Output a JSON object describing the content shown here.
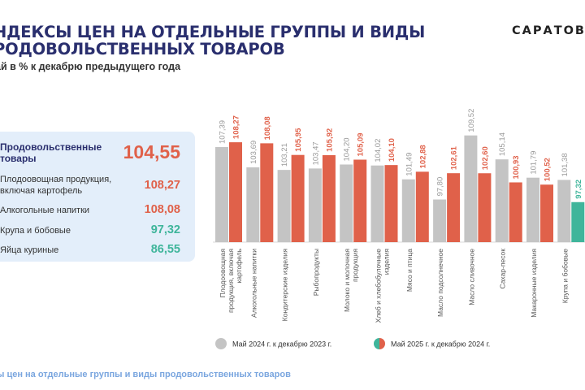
{
  "header": {
    "title_line1": "НДЕКСЫ ЦЕН НА ОТДЕЛЬНЫЕ ГРУППЫ И ВИДЫ",
    "title_line2": "РОДОВОЛЬСТВЕННЫХ ТОВАРОВ",
    "subtitle": "ай в % к декабрю предыдущего года",
    "brand": "САРАТОВС"
  },
  "panel": {
    "rows": [
      {
        "label": "Продовольственные\nтовары",
        "value": "104,55",
        "color": "#e0614a"
      },
      {
        "label": "Плодоовощная продукция,\nвключая картофель",
        "value": "108,27",
        "color": "#e0614a"
      },
      {
        "label": "Алкогольные напитки",
        "value": "108,08",
        "color": "#e0614a"
      },
      {
        "label": "Крупа и бобовые",
        "value": "97,32",
        "color": "#3fb59b"
      },
      {
        "label": "Яйца куриные",
        "value": "86,55",
        "color": "#3fb59b"
      }
    ]
  },
  "footer": {
    "text": "ы цен на отдельные группы и виды продовольственных товаров"
  },
  "chart_data": {
    "type": "bar",
    "categories": [
      "Плодоовощная продукция, включая картофель",
      "Алкогольные напитки",
      "Кондитерские изделия",
      "Рыбопродукты",
      "Молоко и молочная продукция",
      "Хлеб и хлебобулочные изделия",
      "Мясо и птица",
      "Масло подсолнечное",
      "Масло сливочное",
      "Сахар-песок",
      "Макаронные изделия",
      "Крупа и бобовые"
    ],
    "series": [
      {
        "name": "Май 2024 г. к декабрю  2023 г.",
        "color": "#c4c4c4",
        "values": [
          107.39,
          103.69,
          103.21,
          103.47,
          104.2,
          104.02,
          101.49,
          97.8,
          109.52,
          105.14,
          101.79,
          101.38
        ],
        "labels": [
          "107,39",
          "103,69",
          "103,21",
          "103,47",
          "104,20",
          "104,02",
          "101,49",
          "97,80",
          "109,52",
          "105,14",
          "101,79",
          "101,38"
        ]
      },
      {
        "name": "Май  2025 г. к декабрю  2024 г.",
        "color": "#e0614a",
        "values": [
          108.27,
          108.08,
          105.95,
          105.92,
          105.09,
          104.1,
          102.88,
          102.61,
          102.6,
          100.93,
          100.52,
          97.32
        ],
        "labels": [
          "108,27",
          "108,08",
          "105,95",
          "105,92",
          "105,09",
          "104,10",
          "102,88",
          "102,61",
          "102,60",
          "100,93",
          "100,52",
          "97,32"
        ],
        "highlight_index": 11,
        "highlight_color": "#3fb59b"
      }
    ],
    "ylim": [
      90,
      112
    ],
    "legend_position": "bottom"
  }
}
